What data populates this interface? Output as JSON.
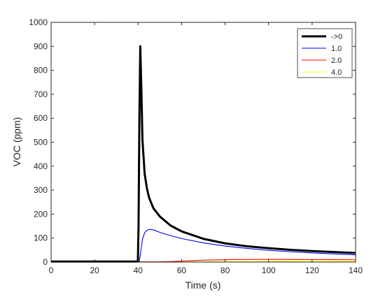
{
  "chart_data": {
    "type": "line",
    "xlabel": "Time (s)",
    "ylabel": "VOC (ppm)",
    "xlim": [
      0,
      140
    ],
    "ylim": [
      0,
      1000
    ],
    "xticks": [
      0,
      20,
      40,
      60,
      80,
      100,
      120,
      140
    ],
    "yticks": [
      0,
      100,
      200,
      300,
      400,
      500,
      600,
      700,
      800,
      900,
      1000
    ],
    "grid": false,
    "legend_position": "top-right",
    "series": [
      {
        "name": "->0",
        "color": "#000000",
        "line_width": "thick",
        "x": [
          0,
          39.9,
          40.2,
          40.6,
          41,
          41.5,
          42,
          42.5,
          43,
          44,
          45,
          47,
          50,
          55,
          60,
          70,
          80,
          90,
          100,
          110,
          120,
          130,
          140
        ],
        "y": [
          2,
          2,
          150,
          600,
          900,
          720,
          510,
          440,
          370,
          310,
          270,
          225,
          190,
          152,
          128,
          97,
          78,
          66,
          58,
          51,
          46,
          42,
          38
        ]
      },
      {
        "name": "1.0",
        "color": "#0000ff",
        "line_width": "thin",
        "x": [
          0,
          40.5,
          41,
          42,
          43,
          44,
          45,
          46,
          47,
          48,
          50,
          52,
          55,
          60,
          70,
          80,
          90,
          100,
          110,
          120,
          130,
          140
        ],
        "y": [
          2,
          2,
          30,
          95,
          122,
          132,
          136,
          136,
          134,
          131,
          124,
          118,
          110,
          98,
          80,
          67,
          57,
          49,
          43,
          38,
          34,
          30
        ]
      },
      {
        "name": "2.0",
        "color": "#ff0000",
        "line_width": "thin",
        "x": [
          0,
          50,
          55,
          60,
          65,
          70,
          80,
          90,
          100,
          110,
          120,
          130,
          140
        ],
        "y": [
          1,
          1,
          2,
          4,
          6,
          8,
          10,
          11,
          11,
          11,
          10.5,
          10,
          9.5
        ]
      },
      {
        "name": "4.0",
        "color": "#ffff00",
        "line_width": "thin",
        "x": [
          0,
          50,
          60,
          70,
          80,
          90,
          100,
          110,
          120,
          130,
          140
        ],
        "y": [
          0.5,
          0.5,
          1,
          1.5,
          2,
          2.5,
          2.8,
          3,
          3,
          3,
          3
        ]
      }
    ]
  }
}
